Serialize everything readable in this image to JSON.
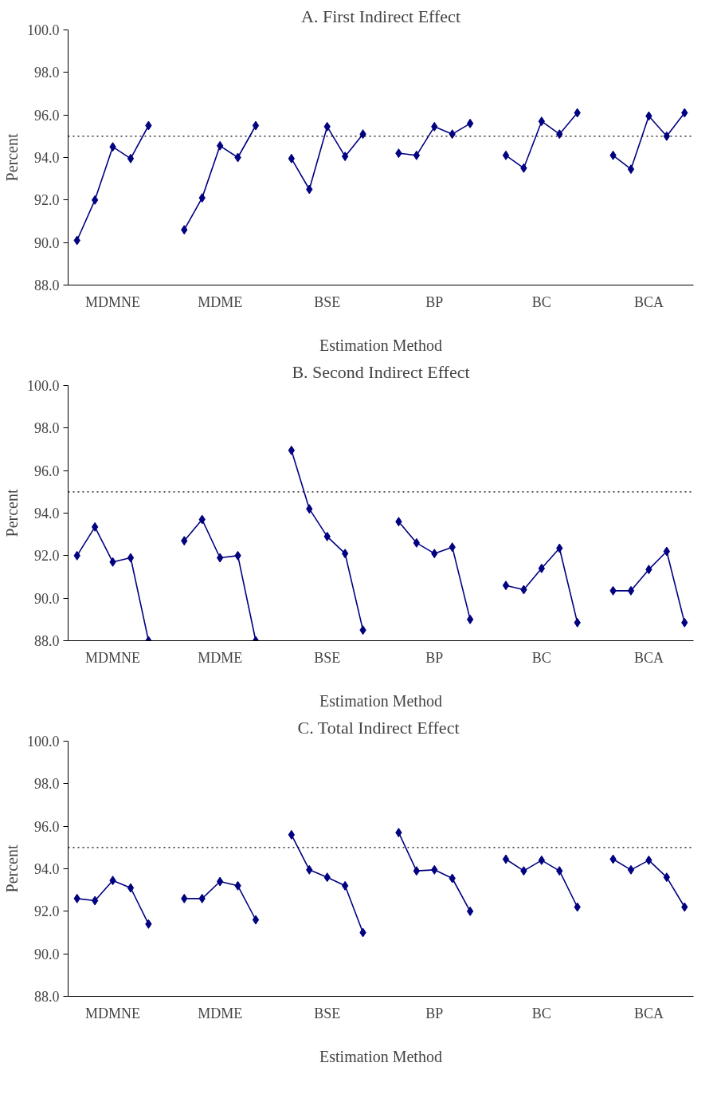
{
  "chart_data": [
    {
      "type": "line",
      "title": "A. First Indirect Effect",
      "xlabel": "Estimation Method",
      "ylabel": "Percent",
      "categories": [
        null,
        null,
        "MDMNE",
        null,
        null,
        null,
        null,
        null,
        "MDME",
        null,
        null,
        null,
        null,
        null,
        "BSE",
        null,
        null,
        null,
        null,
        null,
        "BP",
        null,
        null,
        null,
        null,
        null,
        "BC",
        null,
        null,
        null,
        null,
        null,
        "BCA",
        null,
        null
      ],
      "series": [
        {
          "color": "#000080",
          "values": [
            90.1,
            92.0,
            94.5,
            93.95,
            95.5,
            null,
            90.6,
            92.1,
            94.55,
            94.0,
            95.5,
            null,
            93.95,
            92.5,
            95.45,
            94.05,
            95.1,
            null,
            94.2,
            94.1,
            95.45,
            95.1,
            95.6,
            null,
            94.1,
            93.5,
            95.7,
            95.1,
            96.1,
            null,
            94.1,
            93.45,
            95.95,
            95.0,
            96.1
          ]
        }
      ],
      "ylim": [
        88,
        100
      ],
      "yticks": [
        {
          "value": 88,
          "label": "88.0"
        },
        {
          "value": 90,
          "label": "90.0"
        },
        {
          "value": 92,
          "label": "92.0"
        },
        {
          "value": 94,
          "label": "94.0"
        },
        {
          "value": 96,
          "label": "96.0"
        },
        {
          "value": 98,
          "label": "98.0"
        },
        {
          "value": 100,
          "label": "100.0"
        }
      ],
      "ref_lines": [
        {
          "axis": "y",
          "value": 95,
          "color": "#000000",
          "line_style": "dotted"
        }
      ],
      "marker": "diamond",
      "grid": false
    },
    {
      "type": "line",
      "title": "B. Second Indirect Effect",
      "xlabel": "Estimation Method",
      "ylabel": "Percent",
      "categories": [
        null,
        null,
        "MDMNE",
        null,
        null,
        null,
        null,
        null,
        "MDME",
        null,
        null,
        null,
        null,
        null,
        "BSE",
        null,
        null,
        null,
        null,
        null,
        "BP",
        null,
        null,
        null,
        null,
        null,
        "BC",
        null,
        null,
        null,
        null,
        null,
        "BCA",
        null,
        null
      ],
      "series": [
        {
          "color": "#000080",
          "values": [
            92.0,
            93.35,
            91.7,
            91.9,
            88.0,
            null,
            92.7,
            93.7,
            91.9,
            92.0,
            88.0,
            null,
            96.95,
            94.2,
            92.9,
            92.1,
            88.5,
            null,
            93.6,
            92.6,
            92.1,
            92.4,
            89.0,
            null,
            90.6,
            90.4,
            91.4,
            92.35,
            88.85,
            null,
            90.35,
            90.35,
            91.35,
            92.2,
            88.85
          ]
        }
      ],
      "ylim": [
        88,
        100
      ],
      "yticks": [
        {
          "value": 88,
          "label": "88.0"
        },
        {
          "value": 90,
          "label": "90.0"
        },
        {
          "value": 92,
          "label": "92.0"
        },
        {
          "value": 94,
          "label": "94.0"
        },
        {
          "value": 96,
          "label": "96.0"
        },
        {
          "value": 98,
          "label": "98.0"
        },
        {
          "value": 100,
          "label": "100.0"
        }
      ],
      "ref_lines": [
        {
          "axis": "y",
          "value": 95,
          "color": "#000000",
          "line_style": "dotted"
        }
      ],
      "marker": "diamond",
      "grid": false
    },
    {
      "type": "line",
      "title": "C.  Total Indirect Effect",
      "xlabel": "Estimation Method",
      "ylabel": "Percent",
      "categories": [
        null,
        null,
        "MDMNE",
        null,
        null,
        null,
        null,
        null,
        "MDME",
        null,
        null,
        null,
        null,
        null,
        "BSE",
        null,
        null,
        null,
        null,
        null,
        "BP",
        null,
        null,
        null,
        null,
        null,
        "BC",
        null,
        null,
        null,
        null,
        null,
        "BCA",
        null,
        null
      ],
      "series": [
        {
          "color": "#000080",
          "values": [
            92.6,
            92.5,
            93.45,
            93.1,
            91.4,
            null,
            92.6,
            92.6,
            93.4,
            93.2,
            91.6,
            null,
            95.6,
            93.95,
            93.6,
            93.2,
            91.0,
            null,
            95.7,
            93.9,
            93.95,
            93.55,
            92.0,
            null,
            94.45,
            93.9,
            94.4,
            93.9,
            92.2,
            null,
            94.45,
            93.95,
            94.4,
            93.6,
            92.2
          ]
        }
      ],
      "ylim": [
        88,
        100
      ],
      "yticks": [
        {
          "value": 88,
          "label": "88.0"
        },
        {
          "value": 90,
          "label": "90.0"
        },
        {
          "value": 92,
          "label": "92.0"
        },
        {
          "value": 94,
          "label": "94.0"
        },
        {
          "value": 96,
          "label": "96.0"
        },
        {
          "value": 98,
          "label": "98.0"
        },
        {
          "value": 100,
          "label": "100.0"
        }
      ],
      "ref_lines": [
        {
          "axis": "y",
          "value": 95,
          "color": "#000000",
          "line_style": "dotted"
        }
      ],
      "marker": "diamond",
      "grid": false
    }
  ]
}
